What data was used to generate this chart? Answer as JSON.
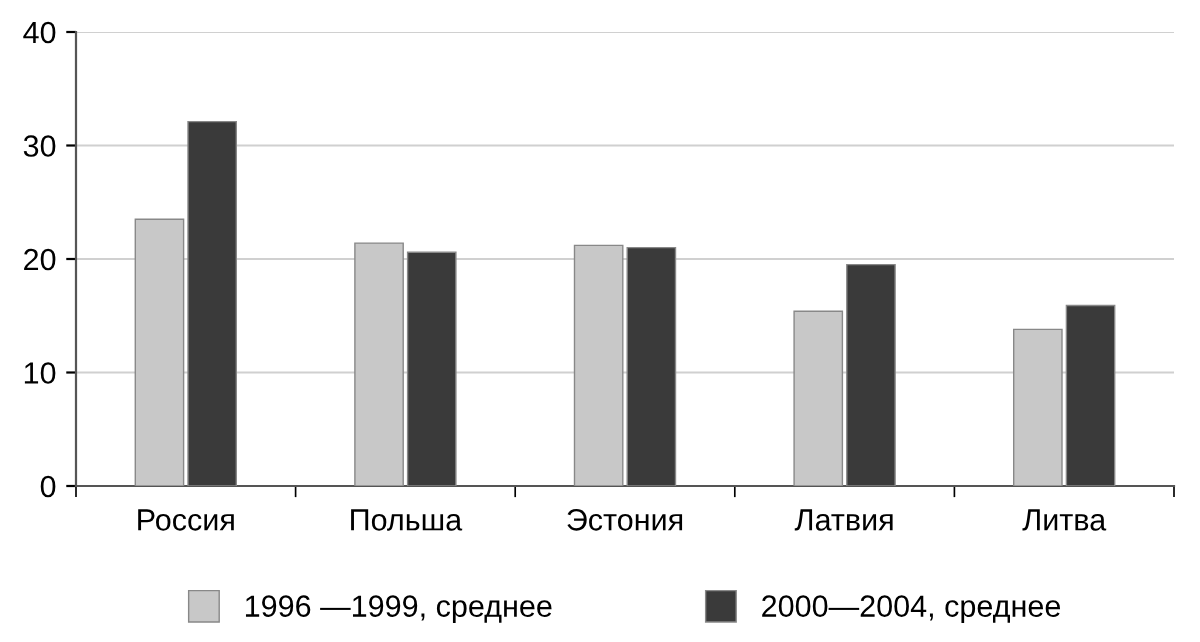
{
  "chart_data": {
    "type": "bar",
    "categories": [
      "Россия",
      "Польша",
      "Эстония",
      "Латвия",
      "Литва"
    ],
    "series": [
      {
        "name": "1996 —1999, среднее",
        "color": "#c8c8c8",
        "values": [
          23.5,
          21.4,
          21.2,
          15.4,
          13.8
        ]
      },
      {
        "name": "2000—2004, среднее",
        "color": "#3a3a3a",
        "values": [
          32.1,
          20.6,
          21.0,
          19.5,
          15.9
        ]
      }
    ],
    "ylim": [
      0,
      40
    ],
    "yticks": [
      0,
      10,
      20,
      30,
      40
    ],
    "grid": "y",
    "legend": "bottom"
  }
}
